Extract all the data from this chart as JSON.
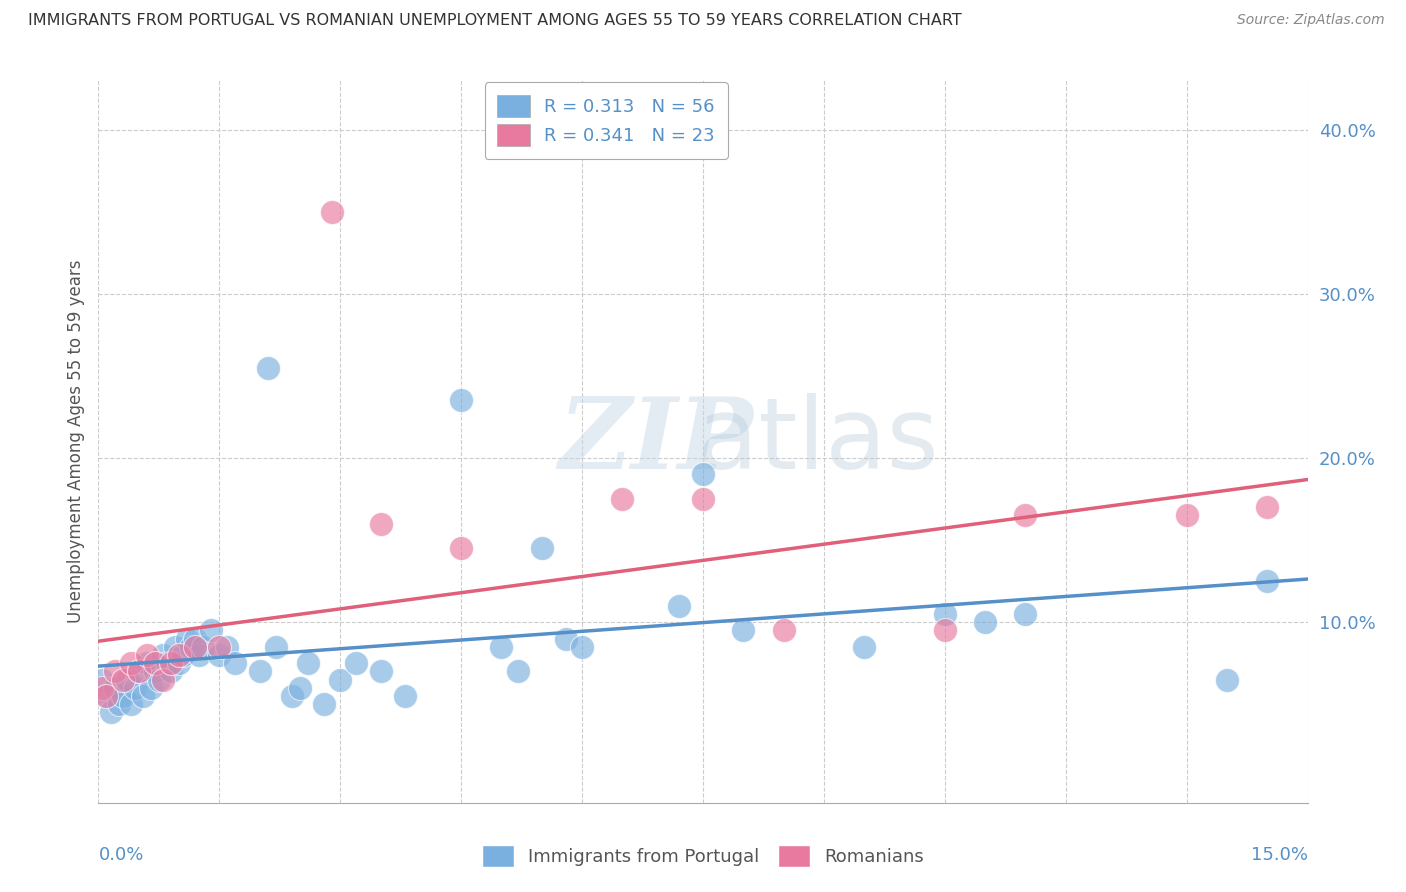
{
  "title": "IMMIGRANTS FROM PORTUGAL VS ROMANIAN UNEMPLOYMENT AMONG AGES 55 TO 59 YEARS CORRELATION CHART",
  "source": "Source: ZipAtlas.com",
  "ylabel": "Unemployment Among Ages 55 to 59 years",
  "xlim": [
    0.0,
    15.0
  ],
  "ylim": [
    -1.0,
    43.0
  ],
  "yticks": [
    0.0,
    10.0,
    20.0,
    30.0,
    40.0
  ],
  "ytick_labels": [
    "",
    "10.0%",
    "20.0%",
    "30.0%",
    "40.0%"
  ],
  "legend_entries": [
    {
      "label": "Immigrants from Portugal",
      "R": "0.313",
      "N": "56",
      "color": "#a8c8f0"
    },
    {
      "label": "Romanians",
      "R": "0.341",
      "N": "23",
      "color": "#f0a8c0"
    }
  ],
  "blue_color": "#7ab0e0",
  "pink_color": "#e87aa0",
  "blue_line_color": "#5590c8",
  "pink_line_color": "#e0607a",
  "watermark_zip": "ZIP",
  "watermark_atlas": "atlas",
  "blue_scatter": [
    [
      0.05,
      6.5
    ],
    [
      0.1,
      5.5
    ],
    [
      0.15,
      4.5
    ],
    [
      0.2,
      6.0
    ],
    [
      0.25,
      5.0
    ],
    [
      0.3,
      5.5
    ],
    [
      0.35,
      6.5
    ],
    [
      0.4,
      5.0
    ],
    [
      0.45,
      6.0
    ],
    [
      0.5,
      7.0
    ],
    [
      0.55,
      5.5
    ],
    [
      0.6,
      7.5
    ],
    [
      0.65,
      6.0
    ],
    [
      0.7,
      7.0
    ],
    [
      0.75,
      6.5
    ],
    [
      0.8,
      8.0
    ],
    [
      0.85,
      7.5
    ],
    [
      0.9,
      7.0
    ],
    [
      0.95,
      8.5
    ],
    [
      1.0,
      7.5
    ],
    [
      1.05,
      8.0
    ],
    [
      1.1,
      9.0
    ],
    [
      1.15,
      8.5
    ],
    [
      1.2,
      9.0
    ],
    [
      1.25,
      8.0
    ],
    [
      1.3,
      8.5
    ],
    [
      1.4,
      9.5
    ],
    [
      1.5,
      8.0
    ],
    [
      1.6,
      8.5
    ],
    [
      1.7,
      7.5
    ],
    [
      2.0,
      7.0
    ],
    [
      2.2,
      8.5
    ],
    [
      2.4,
      5.5
    ],
    [
      2.5,
      6.0
    ],
    [
      2.6,
      7.5
    ],
    [
      2.8,
      5.0
    ],
    [
      3.0,
      6.5
    ],
    [
      3.2,
      7.5
    ],
    [
      3.5,
      7.0
    ],
    [
      3.8,
      5.5
    ],
    [
      2.1,
      25.5
    ],
    [
      4.5,
      23.5
    ],
    [
      5.0,
      8.5
    ],
    [
      5.2,
      7.0
    ],
    [
      5.5,
      14.5
    ],
    [
      5.8,
      9.0
    ],
    [
      6.0,
      8.5
    ],
    [
      7.2,
      11.0
    ],
    [
      7.5,
      19.0
    ],
    [
      8.0,
      9.5
    ],
    [
      9.5,
      8.5
    ],
    [
      10.5,
      10.5
    ],
    [
      11.0,
      10.0
    ],
    [
      11.5,
      10.5
    ],
    [
      14.0,
      6.5
    ],
    [
      14.5,
      12.5
    ]
  ],
  "pink_scatter": [
    [
      0.05,
      6.0
    ],
    [
      0.1,
      5.5
    ],
    [
      0.2,
      7.0
    ],
    [
      0.3,
      6.5
    ],
    [
      0.4,
      7.5
    ],
    [
      0.5,
      7.0
    ],
    [
      0.6,
      8.0
    ],
    [
      0.7,
      7.5
    ],
    [
      0.8,
      6.5
    ],
    [
      0.9,
      7.5
    ],
    [
      1.0,
      8.0
    ],
    [
      1.2,
      8.5
    ],
    [
      1.5,
      8.5
    ],
    [
      2.9,
      35.0
    ],
    [
      3.5,
      16.0
    ],
    [
      4.5,
      14.5
    ],
    [
      6.5,
      17.5
    ],
    [
      7.5,
      17.5
    ],
    [
      8.5,
      9.5
    ],
    [
      10.5,
      9.5
    ],
    [
      11.5,
      16.5
    ],
    [
      13.5,
      16.5
    ],
    [
      14.5,
      17.0
    ]
  ],
  "blue_trend": [
    0.0,
    15.0
  ],
  "pink_trend": [
    0.0,
    15.0
  ]
}
